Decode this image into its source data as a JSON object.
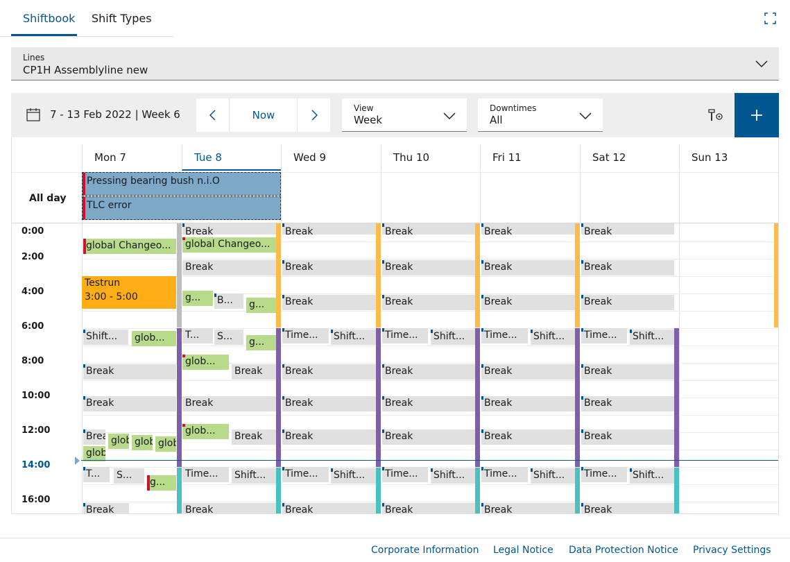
{
  "tabs": [
    {
      "label": "Shiftbook"
    },
    {
      "label": "Shift Types"
    }
  ],
  "lines": {
    "label": "Lines",
    "value": "CP1H Assemblyline new"
  },
  "toolbar": {
    "date_range": "7 - 13 Feb 2022 | Week 6",
    "now_label": "Now",
    "view": {
      "label": "View",
      "value": "Week"
    },
    "downtimes": {
      "label": "Downtimes",
      "value": "All"
    }
  },
  "calendar": {
    "days": [
      "Mon 7",
      "Tue 8",
      "Wed 9",
      "Thu 10",
      "Fri 11",
      "Sat 12",
      "Sun 13"
    ],
    "all_day_label": "All day",
    "all_day_events": [
      "Pressing bearing bush n.i.O",
      "TLC error"
    ],
    "times": [
      "0:00",
      "2:00",
      "4:00",
      "6:00",
      "8:00",
      "10:00",
      "12:00",
      "14:00",
      "16:00"
    ],
    "events": {
      "break": "Break",
      "global_changeover": "global Changeo...",
      "testrun_title": "Testrun",
      "testrun_time": "3:00 - 5:00",
      "g_short": "g...",
      "b_short": "B...",
      "shift_short": "Shift...",
      "glob_short": "glob...",
      "t_short": "T...",
      "s_short": "S...",
      "time_short": "Time...",
      "brea": "Brea",
      "glob": "glob"
    }
  },
  "footer": [
    "Corporate Information",
    "Legal Notice",
    "Data Protection Notice",
    "Privacy Settings"
  ],
  "colors": {
    "accent": "#005691",
    "gray_event": "#e0e0e0",
    "green_event": "#b8db8b",
    "orange_event": "#fdae17",
    "blue_event": "#7ea8c8"
  }
}
